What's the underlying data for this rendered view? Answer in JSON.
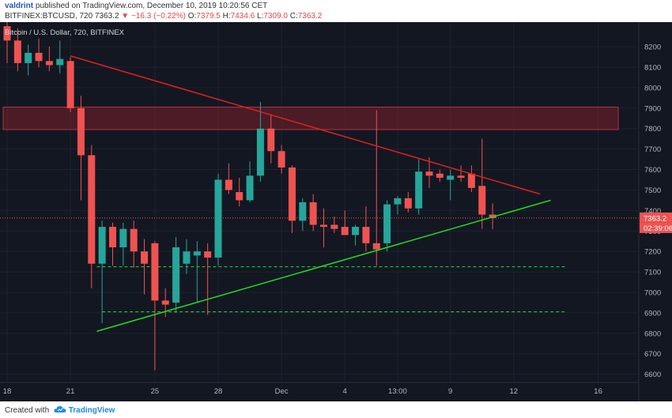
{
  "header": {
    "user": "valdrint",
    "published_text": "published on TradingView.com, December 10, 2019 10:20:56 CET",
    "symbol_line": "BITFINEX:BTCUSD, 720",
    "change_icon": "triangle-down-icon",
    "change": "−16.3 (−0.22%)",
    "o_label": "O:",
    "o_value": "7379.5",
    "h_label": "H:",
    "h_value": "7434.6",
    "l_label": "L:",
    "l_value": "7309.0",
    "c_label": "C:",
    "c_value": "7363.2",
    "last_price": "7363.2"
  },
  "footer": {
    "created_with": "Created with",
    "brand": "TradingView",
    "brand_icon": "tradingview-cloud-icon"
  },
  "chart_data": {
    "type": "candlestick",
    "title": "Bitcoin / U.S. Dollar, 720, BITFINEX",
    "ylim": [
      6560,
      8320
    ],
    "y_ticks": [
      6600,
      6700,
      6800,
      6900,
      7000,
      7100,
      7200,
      7300,
      7400,
      7500,
      7600,
      7700,
      7800,
      7900,
      8000,
      8100,
      8200
    ],
    "x_ticks": [
      {
        "i": 0,
        "label": "18"
      },
      {
        "i": 6,
        "label": "21"
      },
      {
        "i": 14,
        "label": "25"
      },
      {
        "i": 20,
        "label": "28"
      },
      {
        "i": 26,
        "label": "Dec"
      },
      {
        "i": 32,
        "label": "4"
      },
      {
        "i": 37,
        "label": "13:00"
      },
      {
        "i": 42,
        "label": "9"
      },
      {
        "i": 48,
        "label": "12"
      },
      {
        "i": 56,
        "label": "16"
      }
    ],
    "candles": [
      {
        "o": 8300,
        "h": 8330,
        "l": 8120,
        "c": 8230
      },
      {
        "o": 8230,
        "h": 8290,
        "l": 8080,
        "c": 8120
      },
      {
        "o": 8120,
        "h": 8210,
        "l": 8060,
        "c": 8170
      },
      {
        "o": 8170,
        "h": 8240,
        "l": 8100,
        "c": 8130
      },
      {
        "o": 8130,
        "h": 8200,
        "l": 8080,
        "c": 8110
      },
      {
        "o": 8110,
        "h": 8230,
        "l": 8070,
        "c": 8140
      },
      {
        "o": 8130,
        "h": 8150,
        "l": 7880,
        "c": 7900
      },
      {
        "o": 7900,
        "h": 7960,
        "l": 7450,
        "c": 7670
      },
      {
        "o": 7670,
        "h": 7720,
        "l": 7020,
        "c": 7140
      },
      {
        "o": 7140,
        "h": 7350,
        "l": 6850,
        "c": 7320
      },
      {
        "o": 7320,
        "h": 7340,
        "l": 7130,
        "c": 7220
      },
      {
        "o": 7220,
        "h": 7340,
        "l": 7130,
        "c": 7310
      },
      {
        "o": 7310,
        "h": 7350,
        "l": 7120,
        "c": 7200
      },
      {
        "o": 7200,
        "h": 7260,
        "l": 6990,
        "c": 7140
      },
      {
        "o": 7240,
        "h": 7250,
        "l": 6620,
        "c": 6960
      },
      {
        "o": 6960,
        "h": 7020,
        "l": 6880,
        "c": 6940
      },
      {
        "o": 6950,
        "h": 7270,
        "l": 6900,
        "c": 7220
      },
      {
        "o": 7140,
        "h": 7260,
        "l": 7090,
        "c": 7200
      },
      {
        "o": 7180,
        "h": 7250,
        "l": 6950,
        "c": 7200
      },
      {
        "o": 7200,
        "h": 7240,
        "l": 6890,
        "c": 7170
      },
      {
        "o": 7170,
        "h": 7580,
        "l": 7130,
        "c": 7550
      },
      {
        "o": 7550,
        "h": 7630,
        "l": 7480,
        "c": 7500
      },
      {
        "o": 7490,
        "h": 7560,
        "l": 7420,
        "c": 7450
      },
      {
        "o": 7450,
        "h": 7640,
        "l": 7440,
        "c": 7570
      },
      {
        "o": 7570,
        "h": 7930,
        "l": 7540,
        "c": 7800
      },
      {
        "o": 7800,
        "h": 7870,
        "l": 7630,
        "c": 7690
      },
      {
        "o": 7690,
        "h": 7720,
        "l": 7580,
        "c": 7610
      },
      {
        "o": 7610,
        "h": 7620,
        "l": 7290,
        "c": 7350
      },
      {
        "o": 7350,
        "h": 7460,
        "l": 7300,
        "c": 7440
      },
      {
        "o": 7440,
        "h": 7480,
        "l": 7300,
        "c": 7330
      },
      {
        "o": 7330,
        "h": 7410,
        "l": 7220,
        "c": 7320
      },
      {
        "o": 7330,
        "h": 7370,
        "l": 7290,
        "c": 7310
      },
      {
        "o": 7320,
        "h": 7400,
        "l": 7280,
        "c": 7280
      },
      {
        "o": 7280,
        "h": 7330,
        "l": 7230,
        "c": 7320
      },
      {
        "o": 7320,
        "h": 7420,
        "l": 7200,
        "c": 7240
      },
      {
        "o": 7240,
        "h": 7890,
        "l": 7130,
        "c": 7210
      },
      {
        "o": 7240,
        "h": 7450,
        "l": 7200,
        "c": 7430
      },
      {
        "o": 7430,
        "h": 7470,
        "l": 7380,
        "c": 7460
      },
      {
        "o": 7460,
        "h": 7490,
        "l": 7390,
        "c": 7410
      },
      {
        "o": 7410,
        "h": 7650,
        "l": 7380,
        "c": 7590
      },
      {
        "o": 7590,
        "h": 7660,
        "l": 7510,
        "c": 7570
      },
      {
        "o": 7580,
        "h": 7600,
        "l": 7540,
        "c": 7560
      },
      {
        "o": 7550,
        "h": 7600,
        "l": 7450,
        "c": 7570
      },
      {
        "o": 7570,
        "h": 7620,
        "l": 7540,
        "c": 7560
      },
      {
        "o": 7580,
        "h": 7620,
        "l": 7490,
        "c": 7510
      },
      {
        "o": 7520,
        "h": 7750,
        "l": 7310,
        "c": 7380
      },
      {
        "o": 7380,
        "h": 7435,
        "l": 7309,
        "c": 7363
      }
    ],
    "supply_zone": {
      "from": 7795,
      "to": 7905
    },
    "resistance_line": {
      "from_i": 6,
      "from_y": 8155,
      "to_i": 50.5,
      "to_y": 7480
    },
    "support_line": {
      "from_i": 8.5,
      "from_y": 6810,
      "to_i": 51.5,
      "to_y": 7450
    },
    "dashed_levels": [
      {
        "y": 7125,
        "from_i": 8.5,
        "to_i": 53
      },
      {
        "y": 6905,
        "from_i": 9,
        "to_i": 53
      }
    ],
    "last_price_line": 7363.2,
    "countdown": "02:39:06",
    "colors": {
      "background": "#131722",
      "up": "#26a69a",
      "down": "#ef5350",
      "zone": "#7a1f2a",
      "resistance": "#e02020",
      "support": "#22dd22",
      "grid": "#1e2230",
      "axis_text": "#b2b5be"
    }
  }
}
